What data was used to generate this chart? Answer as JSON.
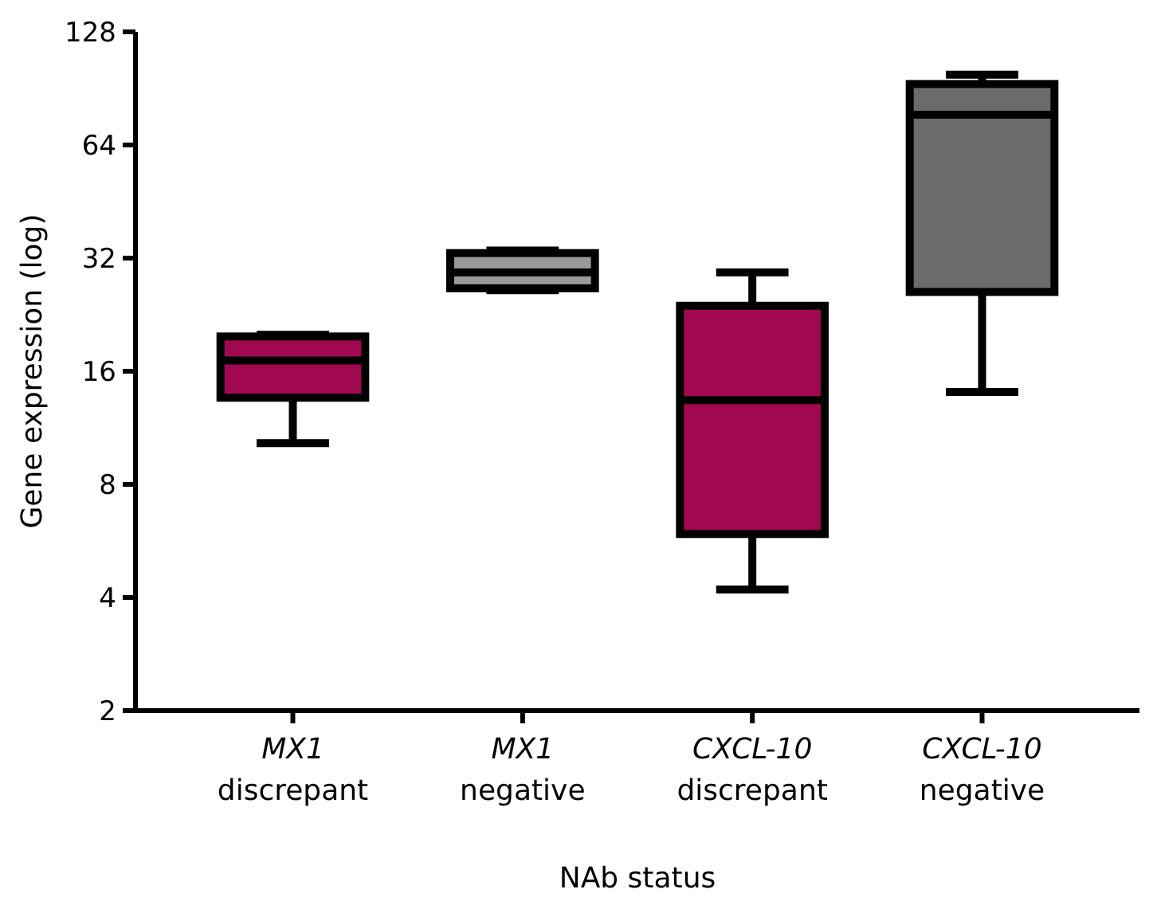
{
  "chart_data": {
    "type": "box",
    "xlabel": "NAb status",
    "ylabel": "Gene expression (log)",
    "log": true,
    "ylim": [
      2,
      128
    ],
    "yticks": [
      2,
      4,
      8,
      16,
      32,
      64,
      128
    ],
    "categories": [
      "MX1\ndiscrepant",
      "MX1\nnegative",
      "CXCL-10\ndiscrepant",
      "CXCL-10\nnegative"
    ],
    "colors": [
      "#a0094f",
      "#9a9a9a",
      "#a0094f",
      "#6b6b6b"
    ],
    "boxes": [
      {
        "low": 10.3,
        "q1": 13.6,
        "median": 17.1,
        "q3": 19.8,
        "high": 20
      },
      {
        "low": 26.3,
        "q1": 26.6,
        "median": 29.3,
        "q3": 33,
        "high": 33.5
      },
      {
        "low": 4.2,
        "q1": 5.9,
        "median": 13.4,
        "q3": 23.9,
        "high": 29.3
      },
      {
        "low": 14.1,
        "q1": 26,
        "median": 77,
        "q3": 93,
        "high": 98.5
      }
    ]
  }
}
